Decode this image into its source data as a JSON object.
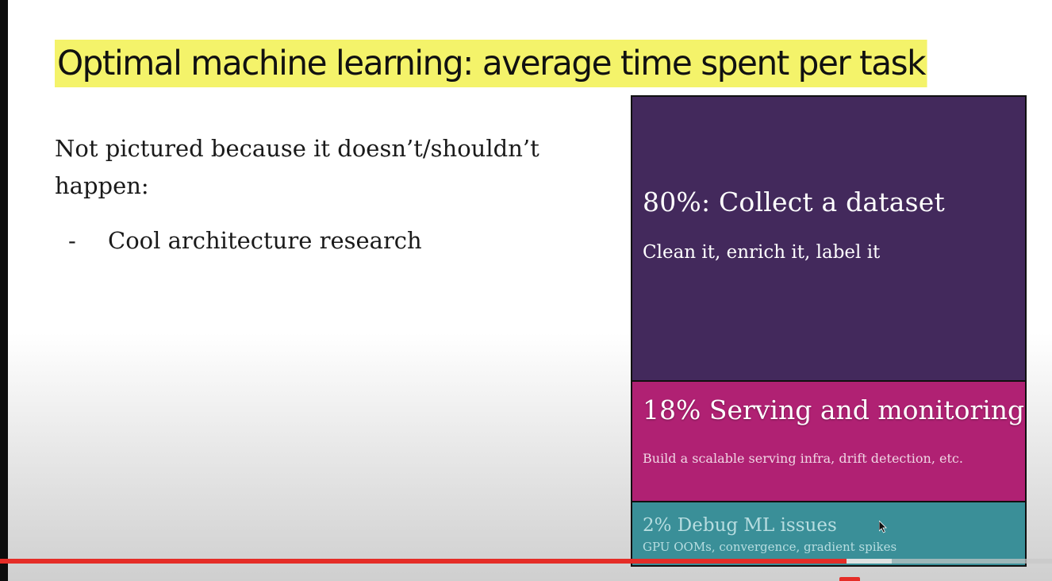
{
  "slide": {
    "title": "Optimal machine learning: average time spent per task",
    "intro": "Not pictured because it doesn’t/shouldn’t happen:",
    "bullet_dash": "-",
    "bullet": "Cool architecture research",
    "blocks": [
      {
        "heading": "80%: Collect a dataset",
        "sub": "Clean it, enrich it, label it",
        "percent": 80,
        "color": "#43295c"
      },
      {
        "heading": "18% Serving and monitoring",
        "sub": "Build a scalable serving infra, drift detection, etc.",
        "percent": 18,
        "color": "#b02173"
      },
      {
        "heading": "2% Debug ML issues",
        "sub": "GPU OOMs, convergence, gradient spikes",
        "percent": 2,
        "color": "#3a8f98"
      }
    ]
  },
  "player": {
    "progress_fraction": 0.805,
    "buffered_fraction": 0.848,
    "progress_color": "#e52d27"
  }
}
